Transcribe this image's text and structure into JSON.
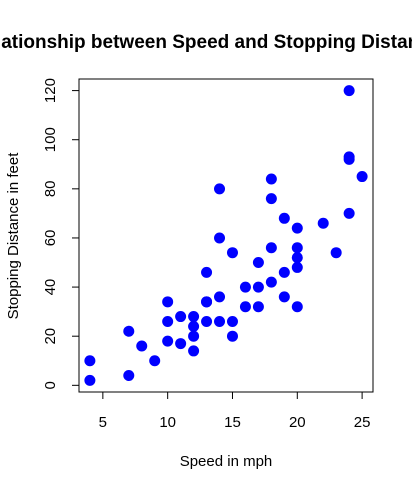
{
  "chart_data": {
    "type": "scatter",
    "title": "Relationship between Speed and Stopping Distance",
    "xlabel": "Speed in mph",
    "ylabel": "Stopping Distance in feet",
    "xlim": [
      3.16,
      25.84
    ],
    "ylim": [
      -2.72,
      124.72
    ],
    "x_ticks": [
      5,
      10,
      15,
      20,
      25
    ],
    "y_ticks": [
      0,
      20,
      40,
      60,
      80,
      100,
      120
    ],
    "grid": false,
    "legend": "none",
    "point_color": "#0000ff",
    "points": [
      [
        4,
        2
      ],
      [
        4,
        10
      ],
      [
        7,
        4
      ],
      [
        7,
        22
      ],
      [
        8,
        16
      ],
      [
        9,
        10
      ],
      [
        10,
        18
      ],
      [
        10,
        26
      ],
      [
        10,
        34
      ],
      [
        11,
        17
      ],
      [
        11,
        28
      ],
      [
        12,
        14
      ],
      [
        12,
        20
      ],
      [
        12,
        24
      ],
      [
        12,
        28
      ],
      [
        13,
        26
      ],
      [
        13,
        34
      ],
      [
        13,
        34
      ],
      [
        13,
        46
      ],
      [
        14,
        26
      ],
      [
        14,
        36
      ],
      [
        14,
        60
      ],
      [
        14,
        80
      ],
      [
        15,
        20
      ],
      [
        15,
        26
      ],
      [
        15,
        54
      ],
      [
        16,
        32
      ],
      [
        16,
        40
      ],
      [
        17,
        32
      ],
      [
        17,
        40
      ],
      [
        17,
        50
      ],
      [
        18,
        42
      ],
      [
        18,
        56
      ],
      [
        18,
        76
      ],
      [
        18,
        84
      ],
      [
        19,
        36
      ],
      [
        19,
        46
      ],
      [
        19,
        68
      ],
      [
        20,
        32
      ],
      [
        20,
        48
      ],
      [
        20,
        52
      ],
      [
        20,
        56
      ],
      [
        20,
        64
      ],
      [
        22,
        66
      ],
      [
        23,
        54
      ],
      [
        24,
        70
      ],
      [
        24,
        92
      ],
      [
        24,
        93
      ],
      [
        24,
        120
      ],
      [
        25,
        85
      ]
    ]
  }
}
